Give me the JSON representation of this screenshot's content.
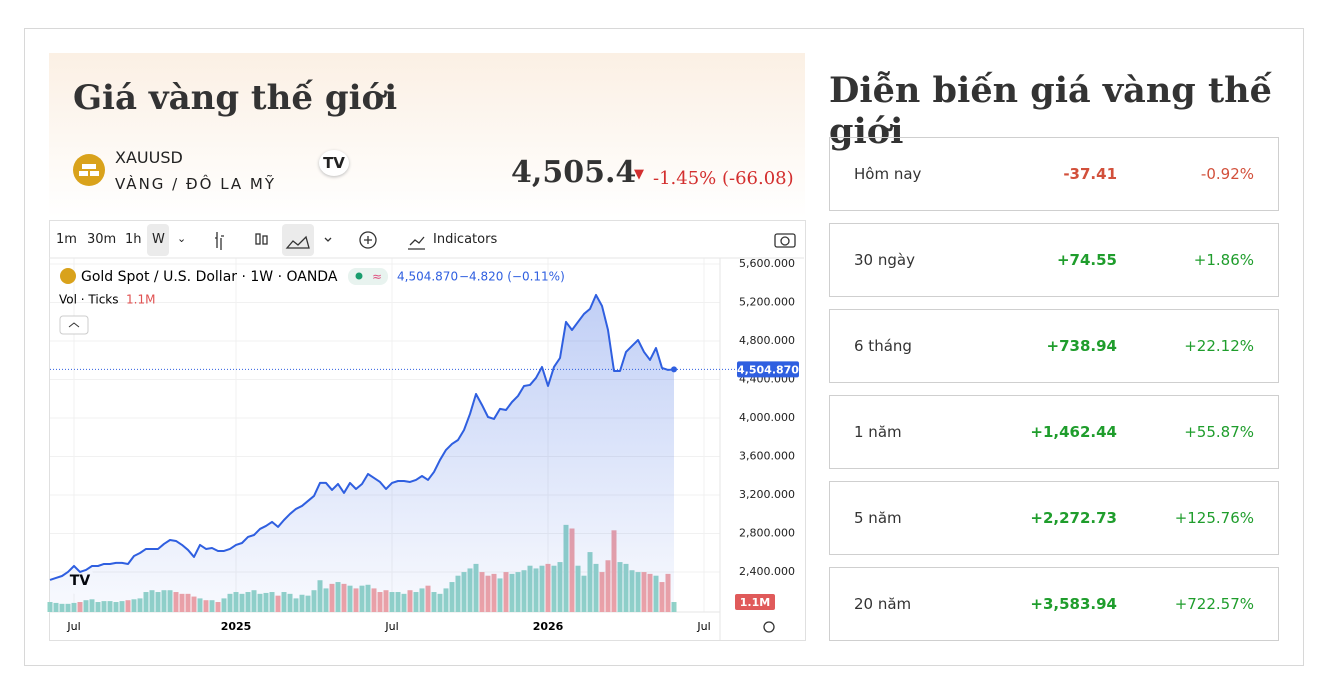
{
  "header": {
    "title": "Giá vàng thế giới",
    "symbol": "XAUUSD",
    "description": "VÀNG / ĐÔ LA MỸ",
    "price": "4,505.4",
    "change": "-1.45% (-66.08)"
  },
  "toolbar": {
    "intervals": [
      "1m",
      "30m",
      "1h",
      "W"
    ],
    "indicators": "Indicators"
  },
  "chart_data": {
    "type": "line",
    "legend_title": "Gold Spot / U.S. Dollar · 1W · OANDA",
    "legend_value": "4,504.870",
    "legend_change": "−4.820 (−0.11%)",
    "volume_title": "Vol · Ticks",
    "categories": [
      null,
      null,
      null,
      null,
      "Jul",
      null,
      null,
      null,
      null,
      null,
      null,
      null,
      null,
      null,
      null,
      null,
      null,
      null,
      null,
      null,
      null,
      null,
      null,
      null,
      null,
      null,
      null,
      null,
      null,
      null,
      null,
      "2025",
      null,
      null,
      null,
      null,
      null,
      null,
      null,
      null,
      null,
      null,
      null,
      null,
      null,
      null,
      null,
      null,
      null,
      null,
      null,
      null,
      null,
      null,
      null,
      null,
      null,
      "Jul",
      null,
      null,
      null,
      null,
      null,
      null,
      null,
      null,
      null,
      null,
      null,
      null,
      null,
      null,
      null,
      null,
      null,
      null,
      null,
      null,
      null,
      null,
      null,
      null,
      null,
      "2026",
      null,
      null,
      null,
      null,
      null,
      null,
      null,
      null,
      null,
      null,
      null,
      null,
      null,
      null,
      null,
      null,
      null,
      null,
      null,
      null,
      null,
      null,
      null,
      null,
      null,
      "Jul"
    ],
    "series": [
      {
        "name": "Gold Spot / U.S. Dollar",
        "color": "#2f5fe0",
        "values": [
          2317,
          2338,
          2358,
          2400,
          2462,
          2400,
          2421,
          2462,
          2462,
          2483,
          2483,
          2494,
          2494,
          2483,
          2566,
          2597,
          2639,
          2639,
          2639,
          2691,
          2732,
          2722,
          2681,
          2629,
          2556,
          2681,
          2639,
          2649,
          2618,
          2618,
          2639,
          2681,
          2701,
          2764,
          2784,
          2847,
          2878,
          2920,
          2868,
          2940,
          3003,
          3055,
          3086,
          3138,
          3190,
          3325,
          3325,
          3252,
          3314,
          3221,
          3325,
          3262,
          3314,
          3418,
          3377,
          3335,
          3262,
          3325,
          3345,
          3345,
          3335,
          3356,
          3397,
          3356,
          3439,
          3564,
          3668,
          3730,
          3771,
          3875,
          4042,
          4249,
          4135,
          4010,
          3990,
          4094,
          4083,
          4166,
          4229,
          4332,
          4343,
          4416,
          4530,
          4332,
          4530,
          4623,
          4998,
          4914,
          4998,
          5081,
          5133,
          5278,
          5164,
          4914,
          4488,
          4488,
          4686,
          4748,
          4810,
          4686,
          4603,
          4727,
          4520,
          4499,
          4504.87,
          null,
          null,
          null,
          null,
          null
        ]
      }
    ],
    "volume": {
      "up_color": "#92d3c8",
      "down_color": "#f0a3a6",
      "lim": [
        0,
        39
      ],
      "values": [
        1.1,
        1.0,
        0.9,
        0.9,
        1.0,
        1.1,
        1.3,
        1.4,
        1.1,
        1.2,
        1.2,
        1.1,
        1.2,
        1.3,
        1.4,
        1.5,
        2.2,
        2.4,
        2.2,
        2.4,
        2.4,
        2.2,
        2.0,
        2.0,
        1.7,
        1.5,
        1.3,
        1.3,
        1.1,
        1.5,
        2.0,
        2.2,
        2.0,
        2.2,
        2.4,
        2.0,
        2.1,
        2.2,
        1.8,
        2.2,
        2.0,
        1.5,
        1.9,
        1.8,
        2.4,
        3.5,
        2.6,
        3.1,
        3.3,
        3.1,
        2.9,
        2.6,
        2.9,
        3.0,
        2.6,
        2.2,
        2.4,
        2.2,
        2.2,
        2.0,
        2.4,
        2.2,
        2.6,
        2.9,
        2.2,
        2.0,
        2.6,
        3.3,
        4.0,
        4.4,
        4.8,
        5.3,
        4.4,
        4.0,
        4.2,
        3.7,
        4.4,
        4.2,
        4.4,
        4.6,
        5.1,
        4.8,
        5.1,
        5.3,
        5.1,
        5.5,
        9.6,
        9.2,
        5.1,
        4.0,
        6.6,
        5.3,
        4.4,
        5.7,
        9.0,
        5.5,
        5.3,
        4.6,
        4.4,
        4.4,
        4.2,
        4.0,
        3.3,
        4.2,
        1.1,
        null,
        null,
        null,
        null,
        null
      ]
    },
    "price_badge": {
      "value": 4504.87,
      "label": "4,504.870"
    },
    "volume_badge": {
      "value": 1.1,
      "label": "1.1M"
    },
    "ylim": [
      1984,
      5662
    ],
    "yticks": [
      {
        "value": 2400,
        "label": "2,400.000"
      },
      {
        "value": 2800,
        "label": "2,800.000"
      },
      {
        "value": 3200,
        "label": "3,200.000"
      },
      {
        "value": 3600,
        "label": "3,600.000"
      },
      {
        "value": 4000,
        "label": "4,000.000"
      },
      {
        "value": 4400,
        "label": "4,400.000"
      },
      {
        "value": 4800,
        "label": "4,800.000"
      },
      {
        "value": 5200,
        "label": "5,200.000"
      },
      {
        "value": 5600,
        "label": "5,600.000"
      }
    ],
    "grid": true
  },
  "summary": {
    "title": "Diễn biến giá vàng thế giới",
    "positive_color": "#1f9d2c",
    "negative_color": "#d2503b",
    "rows": [
      [
        "Hôm nay",
        "-37.41",
        "-0.92%"
      ],
      [
        "30 ngày",
        "+74.55",
        "+1.86%"
      ],
      [
        "6 tháng",
        "+738.94",
        "+22.12%"
      ],
      [
        "1 năm",
        "+1,462.44",
        "+55.87%"
      ],
      [
        "5 năm",
        "+2,272.73",
        "+125.76%"
      ],
      [
        "20 năm",
        "+3,583.94",
        "+722.57%"
      ]
    ]
  }
}
